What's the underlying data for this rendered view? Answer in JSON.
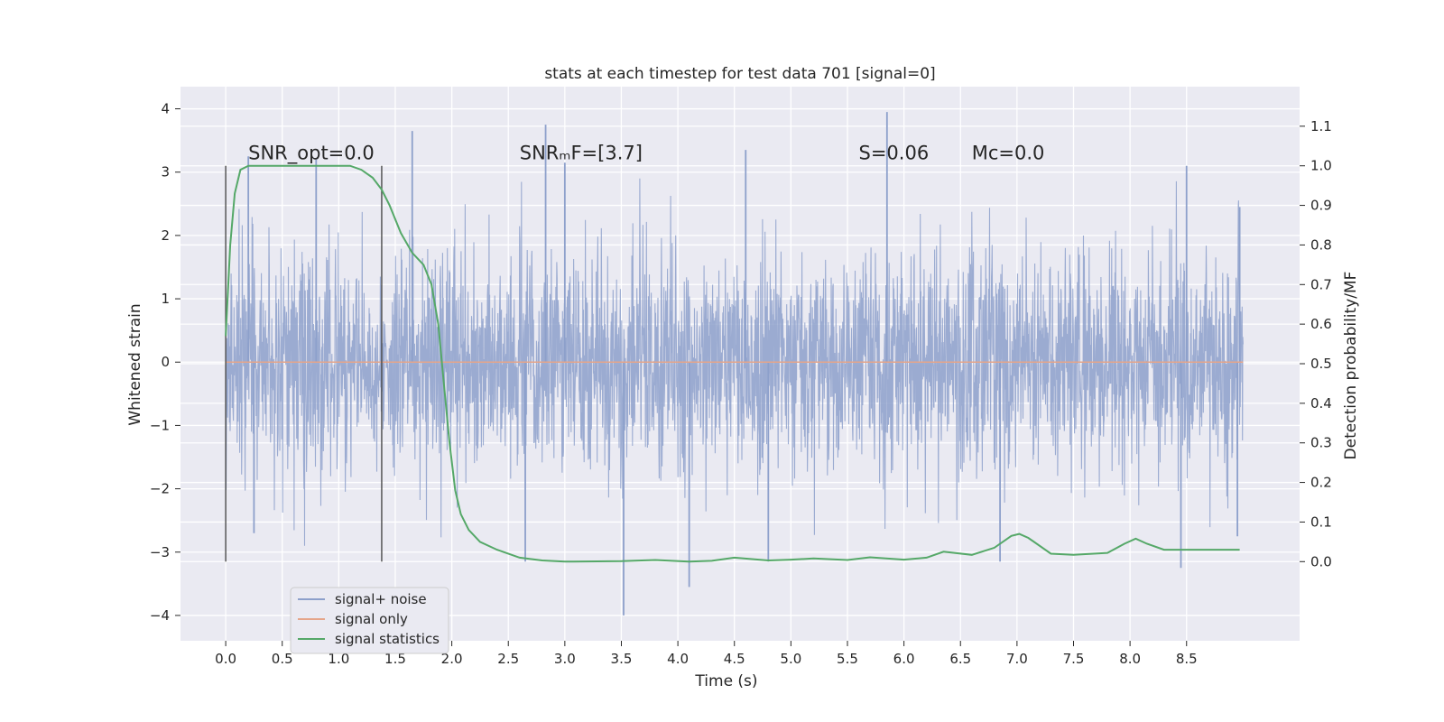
{
  "chart_data": {
    "type": "line",
    "title": "stats at each timestep for test data 701 [signal=0]",
    "xlabel": "Time (s)",
    "ylabel_left": "Whitened strain",
    "ylabel_right": "Detection probability/MF",
    "xlim": [
      -0.4,
      9.5
    ],
    "ylim_left": [
      -4.4,
      4.35
    ],
    "ylim_right": [
      -0.2,
      1.2
    ],
    "x_ticks": [
      0.0,
      0.5,
      1.0,
      1.5,
      2.0,
      2.5,
      3.0,
      3.5,
      4.0,
      4.5,
      5.0,
      5.5,
      6.0,
      6.5,
      7.0,
      7.5,
      8.0,
      8.5
    ],
    "x_tick_labels": [
      "0.0",
      "0.5",
      "1.0",
      "1.5",
      "2.0",
      "2.5",
      "3.0",
      "3.5",
      "4.0",
      "4.5",
      "5.0",
      "5.5",
      "6.0",
      "6.5",
      "7.0",
      "7.5",
      "8.0",
      "8.5"
    ],
    "y_left_ticks": [
      -4,
      -3,
      -2,
      -1,
      0,
      1,
      2,
      3,
      4
    ],
    "y_left_tick_labels": [
      "−4",
      "−3",
      "−2",
      "−1",
      "0",
      "1",
      "2",
      "3",
      "4"
    ],
    "y_right_ticks": [
      0.0,
      0.1,
      0.2,
      0.3,
      0.4,
      0.5,
      0.6,
      0.7,
      0.8,
      0.9,
      1.0,
      1.1
    ],
    "y_right_tick_labels": [
      "0.0",
      "0.1",
      "0.2",
      "0.3",
      "0.4",
      "0.5",
      "0.6",
      "0.7",
      "0.8",
      "0.9",
      "1.0",
      "1.1"
    ],
    "annotations": [
      {
        "text": "SNR_opt=0.0",
        "x": 0.2,
        "y": 3.2
      },
      {
        "text": "SNRₘF=[3.7]",
        "x": 2.6,
        "y": 3.2
      },
      {
        "text": "S=0.06",
        "x": 5.6,
        "y": 3.2
      },
      {
        "text": "Mᴄ=0.0",
        "x": 6.6,
        "y": 3.2
      }
    ],
    "vlines": [
      {
        "x": 0.0,
        "y0": -3.15,
        "y1": 3.1
      },
      {
        "x": 1.38,
        "y0": -3.15,
        "y1": 3.1
      }
    ],
    "legend": {
      "position": "lower-left",
      "entries": [
        {
          "label": "signal+ noise",
          "color": "#8da0cb"
        },
        {
          "label": "signal only",
          "color": "#e5a58a"
        },
        {
          "label": "signal statistics",
          "color": "#55a868"
        }
      ]
    },
    "series": [
      {
        "name": "signal+ noise",
        "axis": "left",
        "color": "#8da0cb",
        "style": "dense noise band",
        "x_range": [
          0.0,
          9.0
        ],
        "band_core": [
          -1.3,
          1.3
        ],
        "spike_extremes": [
          {
            "x": 0.2,
            "y": 3.25
          },
          {
            "x": 0.8,
            "y": 3.2
          },
          {
            "x": 1.65,
            "y": 3.65
          },
          {
            "x": 2.83,
            "y": 3.75
          },
          {
            "x": 3.0,
            "y": 3.15
          },
          {
            "x": 4.6,
            "y": 3.35
          },
          {
            "x": 5.85,
            "y": 3.95
          },
          {
            "x": 8.5,
            "y": 3.1
          },
          {
            "x": 8.97,
            "y": 2.45
          },
          {
            "x": 0.25,
            "y": -2.7
          },
          {
            "x": 2.65,
            "y": -3.15
          },
          {
            "x": 3.52,
            "y": -4.0
          },
          {
            "x": 4.1,
            "y": -3.55
          },
          {
            "x": 4.8,
            "y": -3.15
          },
          {
            "x": 6.85,
            "y": -3.15
          },
          {
            "x": 8.45,
            "y": -3.25
          },
          {
            "x": 8.95,
            "y": -2.75
          }
        ]
      },
      {
        "name": "signal only",
        "axis": "left",
        "color": "#e5a58a",
        "x": [
          0.0,
          9.0
        ],
        "y": [
          0.0,
          0.0
        ]
      },
      {
        "name": "signal statistics",
        "axis": "right",
        "color": "#55a868",
        "x": [
          0.0,
          0.04,
          0.08,
          0.13,
          0.2,
          0.3,
          0.5,
          1.0,
          1.1,
          1.2,
          1.3,
          1.38,
          1.45,
          1.55,
          1.65,
          1.75,
          1.82,
          1.88,
          1.93,
          1.98,
          2.03,
          2.08,
          2.15,
          2.25,
          2.4,
          2.6,
          2.8,
          3.0,
          3.5,
          3.8,
          4.1,
          4.3,
          4.5,
          4.8,
          5.0,
          5.2,
          5.5,
          5.7,
          6.0,
          6.2,
          6.35,
          6.6,
          6.8,
          6.95,
          7.02,
          7.1,
          7.3,
          7.5,
          7.8,
          7.95,
          8.05,
          8.15,
          8.3,
          8.5,
          8.8,
          8.97
        ],
        "y": [
          0.57,
          0.8,
          0.93,
          0.99,
          1.0,
          1.0,
          1.0,
          1.0,
          1.0,
          0.99,
          0.97,
          0.94,
          0.9,
          0.83,
          0.78,
          0.75,
          0.7,
          0.6,
          0.45,
          0.3,
          0.18,
          0.12,
          0.08,
          0.05,
          0.03,
          0.01,
          0.003,
          0.0,
          0.001,
          0.004,
          0.0,
          0.002,
          0.01,
          0.003,
          0.005,
          0.008,
          0.004,
          0.011,
          0.005,
          0.01,
          0.025,
          0.017,
          0.035,
          0.065,
          0.07,
          0.06,
          0.02,
          0.017,
          0.022,
          0.045,
          0.058,
          0.045,
          0.03,
          0.03,
          0.03,
          0.03
        ]
      }
    ]
  }
}
